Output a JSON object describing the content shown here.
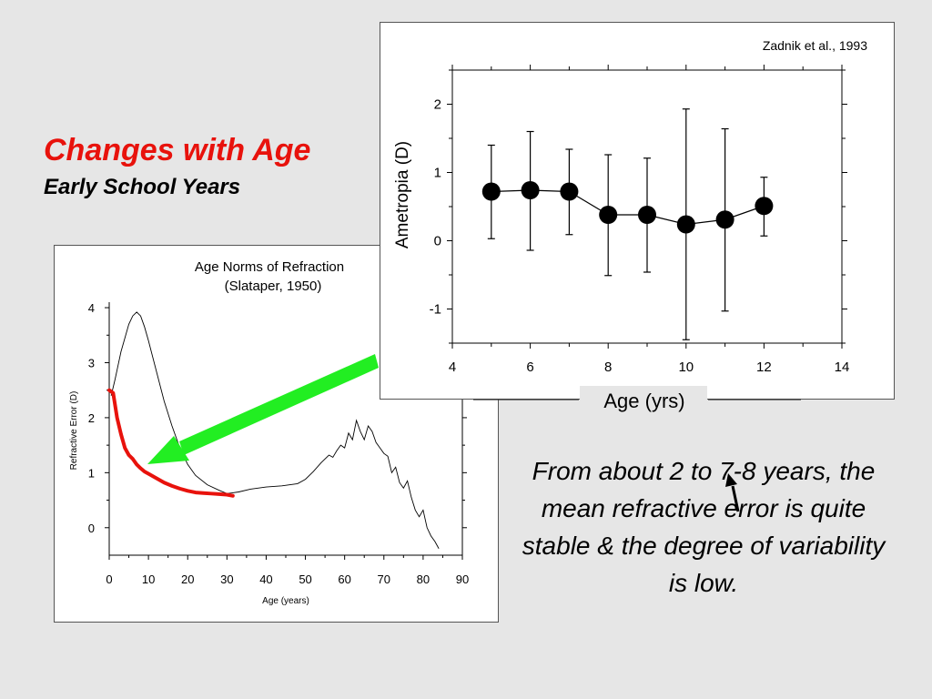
{
  "slide": {
    "title": "Changes with Age",
    "subtitle": "Early School Years",
    "body_text": "From about 2 to 7-8 years, the mean refractive error is quite stable & the degree of variability is low."
  },
  "colors": {
    "title": "#e8120c",
    "highlight_curve": "#e8120c",
    "arrow": "#22ee22",
    "background": "#e6e6e6"
  },
  "chart_data": [
    {
      "type": "line",
      "title": "Age Norms of Refraction",
      "subtitle": "(Slataper, 1950)",
      "xlabel": "Age (years)",
      "ylabel": "Refractive Error (D)",
      "xlim": [
        0,
        90
      ],
      "ylim": [
        -0.5,
        4.1
      ],
      "xticks": [
        0,
        10,
        20,
        30,
        40,
        50,
        60,
        70,
        80,
        90
      ],
      "yticks": [
        0,
        1,
        2,
        3,
        4
      ],
      "series": [
        {
          "style": "thin-black",
          "x": [
            0.5,
            1.5,
            3,
            5,
            6,
            7,
            8,
            9,
            10,
            12,
            14,
            16,
            18,
            20,
            22,
            25,
            28,
            30,
            33,
            36,
            40,
            44,
            48,
            50,
            52,
            54,
            56,
            57,
            58,
            59,
            60,
            61,
            62,
            63,
            64,
            65,
            66,
            67,
            68,
            69,
            70,
            71,
            72,
            73,
            74,
            75,
            76,
            77,
            78,
            79,
            80,
            81,
            82,
            83,
            84
          ],
          "y": [
            2.4,
            2.7,
            3.2,
            3.7,
            3.85,
            3.92,
            3.85,
            3.65,
            3.4,
            2.85,
            2.3,
            1.85,
            1.45,
            1.15,
            0.95,
            0.78,
            0.68,
            0.62,
            0.65,
            0.7,
            0.74,
            0.76,
            0.8,
            0.88,
            1.02,
            1.18,
            1.32,
            1.28,
            1.4,
            1.5,
            1.45,
            1.72,
            1.6,
            1.95,
            1.75,
            1.6,
            1.85,
            1.75,
            1.55,
            1.45,
            1.35,
            1.3,
            1.0,
            1.1,
            0.82,
            0.72,
            0.85,
            0.55,
            0.32,
            0.2,
            0.32,
            0.0,
            -0.15,
            -0.25,
            -0.38
          ]
        },
        {
          "style": "thick-red",
          "x": [
            0,
            1,
            2,
            3,
            4,
            5,
            6,
            7,
            8,
            9,
            10,
            12,
            14,
            16,
            18,
            20,
            22,
            24,
            26,
            28,
            30,
            31.5
          ],
          "y": [
            2.5,
            2.45,
            2.0,
            1.7,
            1.45,
            1.32,
            1.25,
            1.15,
            1.08,
            1.02,
            0.98,
            0.9,
            0.82,
            0.76,
            0.71,
            0.67,
            0.64,
            0.63,
            0.62,
            0.61,
            0.6,
            0.58
          ]
        }
      ]
    },
    {
      "type": "scatter",
      "title": "",
      "annotation": "Zadnik et al., 1993",
      "xlabel": "Age (yrs)",
      "ylabel": "Ametropia (D)",
      "xlim": [
        4,
        14
      ],
      "ylim": [
        -1.5,
        2.5
      ],
      "xticks": [
        4,
        6,
        8,
        10,
        12,
        14
      ],
      "yticks": [
        -1,
        0,
        1,
        2
      ],
      "series": [
        {
          "x": [
            5,
            6,
            7,
            8,
            9,
            10,
            11,
            12
          ],
          "y": [
            0.72,
            0.74,
            0.72,
            0.38,
            0.38,
            0.24,
            0.31,
            0.51
          ],
          "err_low": [
            0.03,
            -0.14,
            0.09,
            -0.51,
            -0.46,
            -1.45,
            -1.03,
            0.07
          ],
          "err_high": [
            1.4,
            1.6,
            1.34,
            1.26,
            1.21,
            1.93,
            1.64,
            0.93
          ]
        }
      ]
    }
  ]
}
